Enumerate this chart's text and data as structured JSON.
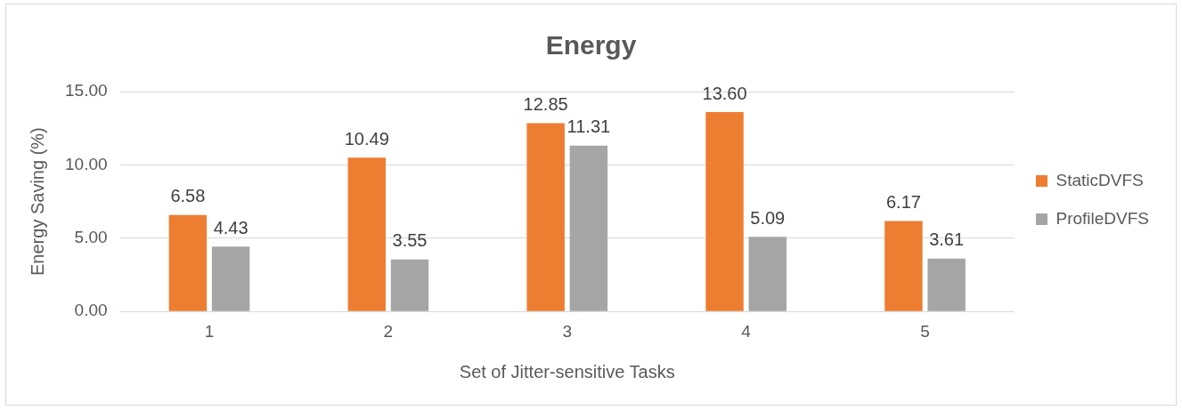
{
  "chart_data": {
    "type": "bar",
    "title": "Energy",
    "xlabel": "Set of Jitter-sensitive Tasks",
    "ylabel": "Energy Saving (%)",
    "categories": [
      "1",
      "2",
      "3",
      "4",
      "5"
    ],
    "series": [
      {
        "name": "StaticDVFS",
        "color": "#ed7d31",
        "values": [
          6.58,
          10.49,
          12.85,
          13.6,
          6.17
        ],
        "value_labels": [
          "6.58",
          "10.49",
          "12.85",
          "13.60",
          "6.17"
        ]
      },
      {
        "name": "ProfileDVFS",
        "color": "#a5a5a5",
        "values": [
          4.43,
          3.55,
          11.31,
          5.09,
          3.61
        ],
        "value_labels": [
          "4.43",
          "3.55",
          "11.31",
          "5.09",
          "3.61"
        ]
      }
    ],
    "ylim": [
      0,
      15
    ],
    "yticks": [
      {
        "value": 0,
        "label": "0.00"
      },
      {
        "value": 5,
        "label": "5.00"
      },
      {
        "value": 10,
        "label": "10.00"
      },
      {
        "value": 15,
        "label": "15.00"
      }
    ],
    "grid": "y",
    "legend": "right"
  }
}
